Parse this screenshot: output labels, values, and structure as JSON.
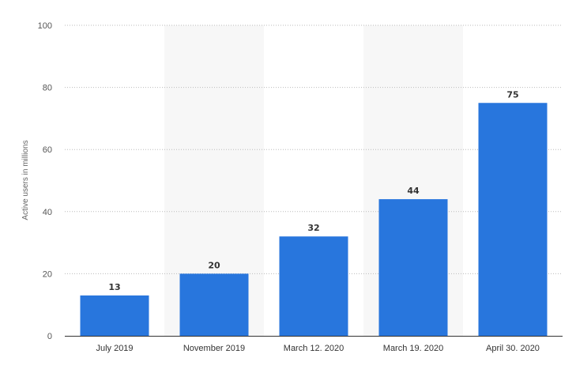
{
  "chart_data": {
    "type": "bar",
    "categories": [
      "July 2019",
      "November 2019",
      "March 12. 2020",
      "March 19. 2020",
      "April 30. 2020"
    ],
    "values": [
      13,
      20,
      32,
      44,
      75
    ],
    "ylabel": "Active users in millions",
    "ylim": [
      0,
      100
    ],
    "yticks": [
      0,
      20,
      40,
      60,
      80,
      100
    ],
    "grid": true,
    "bar_color": "#2876dd",
    "alt_band_color": "#f7f7f7",
    "gridline_color": "#bbbbbb"
  }
}
